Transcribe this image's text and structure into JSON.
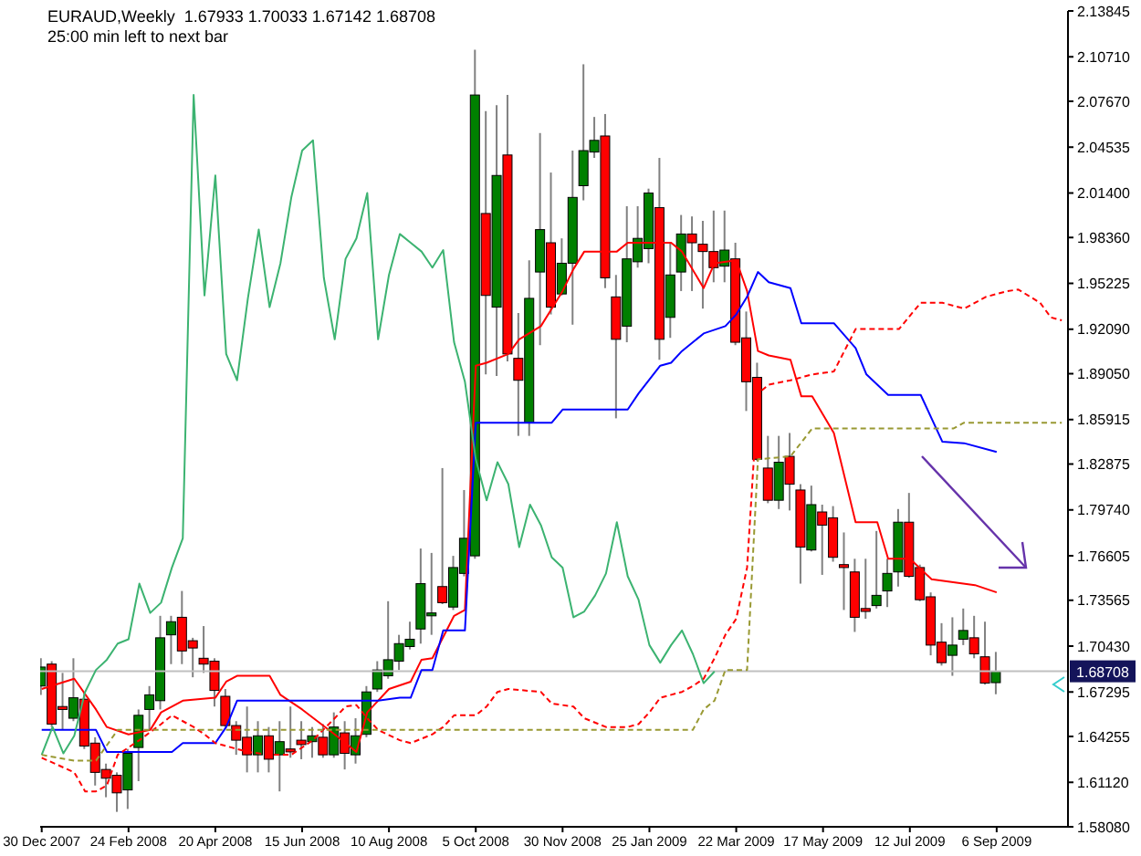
{
  "chart_data": {
    "type": "candlestick",
    "title": "EURAUD,Weekly  1.67933 1.70033 1.67142 1.68708",
    "subtitle": "25:00 min left to next bar",
    "x": [
      "2007-12-30",
      "2008-01-06",
      "2008-01-13",
      "2008-01-20",
      "2008-01-27",
      "2008-02-03",
      "2008-02-10",
      "2008-02-17",
      "2008-02-24",
      "2008-03-02",
      "2008-03-09",
      "2008-03-16",
      "2008-03-23",
      "2008-03-30",
      "2008-04-06",
      "2008-04-13",
      "2008-04-20",
      "2008-04-27",
      "2008-05-04",
      "2008-05-11",
      "2008-05-18",
      "2008-05-25",
      "2008-06-01",
      "2008-06-08",
      "2008-06-15",
      "2008-06-22",
      "2008-06-29",
      "2008-07-06",
      "2008-07-13",
      "2008-07-20",
      "2008-07-27",
      "2008-08-03",
      "2008-08-10",
      "2008-08-17",
      "2008-08-24",
      "2008-08-31",
      "2008-09-07",
      "2008-09-14",
      "2008-09-21",
      "2008-09-28",
      "2008-10-05",
      "2008-10-12",
      "2008-10-19",
      "2008-10-26",
      "2008-11-02",
      "2008-11-09",
      "2008-11-16",
      "2008-11-23",
      "2008-11-30",
      "2008-12-07",
      "2008-12-14",
      "2008-12-21",
      "2008-12-28",
      "2009-01-04",
      "2009-01-11",
      "2009-01-18",
      "2009-01-25",
      "2009-02-01",
      "2009-02-08",
      "2009-02-15",
      "2009-02-22",
      "2009-03-01",
      "2009-03-08",
      "2009-03-15",
      "2009-03-22",
      "2009-03-29",
      "2009-04-05",
      "2009-04-12",
      "2009-04-19",
      "2009-04-26",
      "2009-05-03",
      "2009-05-10",
      "2009-05-17",
      "2009-05-24",
      "2009-05-31",
      "2009-06-07",
      "2009-06-14",
      "2009-06-21",
      "2009-06-28",
      "2009-07-05",
      "2009-07-12",
      "2009-07-19",
      "2009-07-26",
      "2009-08-02",
      "2009-08-09",
      "2009-08-16",
      "2009-08-23",
      "2009-08-30",
      "2009-09-06"
    ],
    "ohlc": [
      [
        1.677,
        1.696,
        1.671,
        1.69
      ],
      [
        1.692,
        1.694,
        1.649,
        1.651
      ],
      [
        1.663,
        1.686,
        1.647,
        1.661
      ],
      [
        1.655,
        1.696,
        1.653,
        1.669
      ],
      [
        1.668,
        1.673,
        1.634,
        1.636
      ],
      [
        1.638,
        1.642,
        1.609,
        1.618
      ],
      [
        1.62,
        1.624,
        1.601,
        1.614
      ],
      [
        1.616,
        1.618,
        1.591,
        1.604
      ],
      [
        1.606,
        1.634,
        1.593,
        1.631
      ],
      [
        1.635,
        1.661,
        1.612,
        1.657
      ],
      [
        1.661,
        1.677,
        1.647,
        1.671
      ],
      [
        1.667,
        1.725,
        1.661,
        1.71
      ],
      [
        1.712,
        1.725,
        1.692,
        1.721
      ],
      [
        1.724,
        1.742,
        1.692,
        1.701
      ],
      [
        1.708,
        1.71,
        1.683,
        1.703
      ],
      [
        1.696,
        1.718,
        1.686,
        1.692
      ],
      [
        1.694,
        1.696,
        1.663,
        1.674
      ],
      [
        1.67,
        1.675,
        1.649,
        1.65
      ],
      [
        1.65,
        1.653,
        1.63,
        1.64
      ],
      [
        1.642,
        1.663,
        1.618,
        1.63
      ],
      [
        1.63,
        1.653,
        1.618,
        1.643
      ],
      [
        1.643,
        1.649,
        1.618,
        1.627
      ],
      [
        1.63,
        1.653,
        1.605,
        1.639
      ],
      [
        1.634,
        1.663,
        1.628,
        1.632
      ],
      [
        1.64,
        1.653,
        1.627,
        1.637
      ],
      [
        1.639,
        1.649,
        1.628,
        1.643
      ],
      [
        1.642,
        1.651,
        1.628,
        1.63
      ],
      [
        1.63,
        1.659,
        1.628,
        1.649
      ],
      [
        1.645,
        1.653,
        1.62,
        1.631
      ],
      [
        1.63,
        1.655,
        1.624,
        1.643
      ],
      [
        1.644,
        1.677,
        1.642,
        1.673
      ],
      [
        1.675,
        1.694,
        1.673,
        1.688
      ],
      [
        1.684,
        1.735,
        1.682,
        1.695
      ],
      [
        1.694,
        1.712,
        1.688,
        1.706
      ],
      [
        1.704,
        1.721,
        1.702,
        1.709
      ],
      [
        1.716,
        1.771,
        1.706,
        1.747
      ],
      [
        1.725,
        1.768,
        1.712,
        1.727
      ],
      [
        1.745,
        1.826,
        1.733,
        1.734
      ],
      [
        1.731,
        1.766,
        1.729,
        1.758
      ],
      [
        1.754,
        1.811,
        1.752,
        1.778
      ],
      [
        1.766,
        2.112,
        1.764,
        2.081
      ],
      [
        2.0,
        2.07,
        1.89,
        1.944
      ],
      [
        1.936,
        2.074,
        1.889,
        2.026
      ],
      [
        2.04,
        2.081,
        1.899,
        1.904
      ],
      [
        1.901,
        1.932,
        1.848,
        1.886
      ],
      [
        1.857,
        1.968,
        1.848,
        1.942
      ],
      [
        1.96,
        2.055,
        1.91,
        1.989
      ],
      [
        1.98,
        2.028,
        1.931,
        1.936
      ],
      [
        1.945,
        1.983,
        1.944,
        1.966
      ],
      [
        1.966,
        2.043,
        1.924,
        2.011
      ],
      [
        2.019,
        2.102,
        2.009,
        2.043
      ],
      [
        2.042,
        2.066,
        2.038,
        2.05
      ],
      [
        2.053,
        2.068,
        1.949,
        1.956
      ],
      [
        1.943,
        1.958,
        1.86,
        1.914
      ],
      [
        1.923,
        2.005,
        1.912,
        1.969
      ],
      [
        1.967,
        2.005,
        1.963,
        1.983
      ],
      [
        1.976,
        2.017,
        1.966,
        2.014
      ],
      [
        2.004,
        2.038,
        1.9,
        1.914
      ],
      [
        1.929,
        1.98,
        1.915,
        1.958
      ],
      [
        1.96,
        1.999,
        1.947,
        1.986
      ],
      [
        1.986,
        1.998,
        1.947,
        1.98
      ],
      [
        1.979,
        1.995,
        1.935,
        1.974
      ],
      [
        1.974,
        2.002,
        1.953,
        1.963
      ],
      [
        1.964,
        2.002,
        1.953,
        1.975
      ],
      [
        1.969,
        1.98,
        1.91,
        1.912
      ],
      [
        1.915,
        1.933,
        1.865,
        1.885
      ],
      [
        1.888,
        1.898,
        1.831,
        1.832
      ],
      [
        1.826,
        1.848,
        1.802,
        1.804
      ],
      [
        1.804,
        1.848,
        1.798,
        1.83
      ],
      [
        1.834,
        1.85,
        1.797,
        1.815
      ],
      [
        1.811,
        1.815,
        1.747,
        1.772
      ],
      [
        1.77,
        1.814,
        1.769,
        1.801
      ],
      [
        1.796,
        1.801,
        1.753,
        1.787
      ],
      [
        1.792,
        1.8,
        1.762,
        1.765
      ],
      [
        1.76,
        1.782,
        1.729,
        1.758
      ],
      [
        1.755,
        1.764,
        1.714,
        1.724
      ],
      [
        1.73,
        1.764,
        1.723,
        1.728
      ],
      [
        1.732,
        1.783,
        1.73,
        1.739
      ],
      [
        1.742,
        1.764,
        1.731,
        1.754
      ],
      [
        1.755,
        1.798,
        1.745,
        1.789
      ],
      [
        1.789,
        1.809,
        1.751,
        1.752
      ],
      [
        1.758,
        1.76,
        1.735,
        1.736
      ],
      [
        1.738,
        1.741,
        1.698,
        1.705
      ],
      [
        1.707,
        1.72,
        1.691,
        1.693
      ],
      [
        1.698,
        1.724,
        1.684,
        1.705
      ],
      [
        1.709,
        1.73,
        1.705,
        1.715
      ],
      [
        1.71,
        1.725,
        1.696,
        1.699
      ],
      [
        1.697,
        1.721,
        1.678,
        1.679
      ],
      [
        1.67933,
        1.70033,
        1.67142,
        1.68708
      ]
    ],
    "series": [
      {
        "type": "line",
        "color": "#ff0000",
        "x": [
          "2007-12-30",
          "2008-01-20",
          "2008-02-03",
          "2008-02-10",
          "2008-02-24",
          "2008-03-09",
          "2008-03-16",
          "2008-03-30",
          "2008-04-20",
          "2008-04-27",
          "2008-05-04",
          "2008-05-25",
          "2008-06-01",
          "2008-06-15",
          "2008-07-06",
          "2008-07-20",
          "2008-07-27",
          "2008-08-10",
          "2008-08-24",
          "2008-08-31",
          "2008-09-07",
          "2008-09-21",
          "2008-09-28",
          "2008-10-05",
          "2008-10-12",
          "2008-10-26",
          "2008-11-02",
          "2008-11-16",
          "2008-11-23",
          "2008-11-30",
          "2008-12-07",
          "2008-12-14",
          "2009-01-04",
          "2009-01-11",
          "2009-02-08",
          "2009-02-15",
          "2009-03-01",
          "2009-03-08",
          "2009-03-22",
          "2009-03-29",
          "2009-04-05",
          "2009-04-12",
          "2009-04-26",
          "2009-05-03",
          "2009-05-10",
          "2009-05-24",
          "2009-06-07",
          "2009-06-21",
          "2009-06-28",
          "2009-07-12",
          "2009-07-26",
          "2009-08-23",
          "2009-09-06"
        ],
        "values": [
          1.675,
          1.682,
          1.661,
          1.649,
          1.644,
          1.647,
          1.659,
          1.667,
          1.669,
          1.68,
          1.684,
          1.684,
          1.671,
          1.661,
          1.644,
          1.632,
          1.659,
          1.675,
          1.68,
          1.695,
          1.696,
          1.725,
          1.729,
          1.896,
          1.898,
          1.904,
          1.914,
          1.923,
          1.935,
          1.947,
          1.962,
          1.974,
          1.974,
          1.98,
          1.98,
          1.974,
          1.949,
          1.966,
          1.968,
          1.947,
          1.906,
          1.903,
          1.9,
          1.875,
          1.875,
          1.85,
          1.789,
          1.789,
          1.764,
          1.764,
          1.75,
          1.746,
          1.741
        ]
      },
      {
        "type": "line",
        "color": "#0000ff",
        "x": [
          "2007-12-30",
          "2008-02-03",
          "2008-02-10",
          "2008-03-23",
          "2008-03-30",
          "2008-04-20",
          "2008-04-27",
          "2008-05-04",
          "2008-08-03",
          "2008-08-17",
          "2008-08-24",
          "2008-08-31",
          "2008-09-07",
          "2008-09-14",
          "2008-09-28",
          "2008-10-05",
          "2008-11-23",
          "2008-11-30",
          "2009-01-11",
          "2009-01-18",
          "2009-02-01",
          "2009-02-08",
          "2009-02-15",
          "2009-03-01",
          "2009-03-15",
          "2009-03-22",
          "2009-03-29",
          "2009-04-05",
          "2009-04-12",
          "2009-04-26",
          "2009-05-03",
          "2009-05-24",
          "2009-06-07",
          "2009-06-14",
          "2009-06-28",
          "2009-07-19",
          "2009-08-02",
          "2009-08-16",
          "2009-09-06"
        ],
        "values": [
          1.647,
          1.647,
          1.632,
          1.632,
          1.638,
          1.638,
          1.649,
          1.667,
          1.667,
          1.669,
          1.669,
          1.688,
          1.688,
          1.715,
          1.715,
          1.857,
          1.857,
          1.866,
          1.866,
          1.877,
          1.896,
          1.898,
          1.906,
          1.918,
          1.923,
          1.931,
          1.943,
          1.96,
          1.953,
          1.949,
          1.925,
          1.925,
          1.908,
          1.89,
          1.876,
          1.876,
          1.844,
          1.843,
          1.837
        ]
      },
      {
        "type": "line",
        "color": "#3cb371",
        "x": [
          "2007-12-30",
          "2008-01-06",
          "2008-01-13",
          "2008-01-20",
          "2008-01-27",
          "2008-02-03",
          "2008-02-10",
          "2008-02-17",
          "2008-02-24",
          "2008-03-02",
          "2008-03-09",
          "2008-03-16",
          "2008-03-23",
          "2008-03-30",
          "2008-04-06",
          "2008-04-13",
          "2008-04-20",
          "2008-04-27",
          "2008-05-04",
          "2008-05-11",
          "2008-05-18",
          "2008-05-25",
          "2008-06-01",
          "2008-06-08",
          "2008-06-15",
          "2008-06-22",
          "2008-06-29",
          "2008-07-06",
          "2008-07-13",
          "2008-07-20",
          "2008-07-27",
          "2008-08-03",
          "2008-08-10",
          "2008-08-17",
          "2008-08-24",
          "2008-08-31",
          "2008-09-07",
          "2008-09-14",
          "2008-09-21",
          "2008-09-28",
          "2008-10-05",
          "2008-10-12",
          "2008-10-19",
          "2008-10-26",
          "2008-11-02",
          "2008-11-09",
          "2008-11-16",
          "2008-11-23",
          "2008-11-30",
          "2008-12-07",
          "2008-12-14",
          "2008-12-21",
          "2008-12-28",
          "2009-01-04",
          "2009-01-11",
          "2009-01-18",
          "2009-01-25",
          "2009-02-01",
          "2009-02-08",
          "2009-02-15",
          "2009-02-22",
          "2009-03-01",
          "2009-03-08"
        ],
        "values": [
          1.63,
          1.649,
          1.631,
          1.643,
          1.673,
          1.688,
          1.695,
          1.706,
          1.709,
          1.747,
          1.727,
          1.734,
          1.758,
          1.778,
          2.081,
          1.944,
          2.026,
          1.904,
          1.886,
          1.942,
          1.989,
          1.936,
          1.966,
          2.011,
          2.043,
          2.05,
          1.956,
          1.914,
          1.969,
          1.983,
          2.014,
          1.914,
          1.958,
          1.986,
          1.98,
          1.974,
          1.963,
          1.975,
          1.912,
          1.885,
          1.832,
          1.804,
          1.83,
          1.815,
          1.772,
          1.801,
          1.787,
          1.765,
          1.758,
          1.724,
          1.728,
          1.739,
          1.754,
          1.789,
          1.752,
          1.736,
          1.705,
          1.693,
          1.705,
          1.715,
          1.699,
          1.679,
          1.687
        ]
      },
      {
        "type": "line",
        "color": "#ff0000",
        "line_style": "dashed",
        "x": [
          "2007-12-30",
          "2008-01-20",
          "2008-01-27",
          "2008-02-03",
          "2008-02-10",
          "2008-02-17",
          "2008-03-02",
          "2008-03-16",
          "2008-03-23",
          "2008-03-30",
          "2008-04-06",
          "2008-04-13",
          "2008-04-20",
          "2008-05-11",
          "2008-05-25",
          "2008-06-08",
          "2008-06-22",
          "2008-07-06",
          "2008-07-13",
          "2008-07-20",
          "2008-07-27",
          "2008-08-03",
          "2008-08-17",
          "2008-08-24",
          "2008-09-07",
          "2008-09-14",
          "2008-09-21",
          "2008-10-05",
          "2008-10-12",
          "2008-10-19",
          "2008-10-26",
          "2008-11-16",
          "2008-11-23",
          "2008-12-07",
          "2008-12-14",
          "2008-12-28",
          "2009-01-11",
          "2009-01-18",
          "2009-01-25",
          "2009-02-01",
          "2009-02-08",
          "2009-02-15",
          "2009-02-22",
          "2009-03-01",
          "2009-03-08",
          "2009-03-15",
          "2009-03-22",
          "2009-03-29",
          "2009-04-05",
          "2009-04-12",
          "2009-04-26",
          "2009-05-10",
          "2009-05-24",
          "2009-06-07",
          "2009-06-14",
          "2009-07-05",
          "2009-07-19",
          "2009-08-02",
          "2009-08-16",
          "2009-08-30",
          "2009-09-13",
          "2009-09-20",
          "2009-10-04",
          "2009-10-11",
          "2009-10-18"
        ],
        "values": [
          1.628,
          1.618,
          1.605,
          1.605,
          1.609,
          1.63,
          1.64,
          1.651,
          1.657,
          1.653,
          1.649,
          1.644,
          1.638,
          1.632,
          1.63,
          1.63,
          1.64,
          1.655,
          1.663,
          1.664,
          1.655,
          1.647,
          1.64,
          1.638,
          1.644,
          1.649,
          1.657,
          1.657,
          1.663,
          1.673,
          1.675,
          1.673,
          1.665,
          1.663,
          1.655,
          1.649,
          1.649,
          1.651,
          1.659,
          1.669,
          1.671,
          1.673,
          1.677,
          1.682,
          1.696,
          1.712,
          1.723,
          1.758,
          1.877,
          1.883,
          1.886,
          1.89,
          1.892,
          1.921,
          1.921,
          1.921,
          1.939,
          1.939,
          1.935,
          1.943,
          1.947,
          1.948,
          1.939,
          1.929,
          1.927
        ]
      },
      {
        "type": "line",
        "color": "#999933",
        "line_style": "dashed",
        "x": [
          "2007-12-30",
          "2008-01-20",
          "2008-02-03",
          "2008-02-17",
          "2009-02-22",
          "2009-03-01",
          "2009-03-08",
          "2009-03-15",
          "2009-03-29",
          "2009-04-05",
          "2009-04-26",
          "2009-05-10",
          "2009-08-09",
          "2009-08-16",
          "2009-10-18"
        ],
        "values": [
          1.63,
          1.626,
          1.626,
          1.647,
          1.647,
          1.661,
          1.667,
          1.688,
          1.688,
          1.832,
          1.834,
          1.853,
          1.853,
          1.857,
          1.857
        ]
      }
    ],
    "xlim": [
      "2007-12-29",
      "2009-10-22"
    ],
    "xticks": [
      {
        "value": "2007-12-30",
        "label": "30 Dec 2007"
      },
      {
        "value": "2008-02-24",
        "label": "24 Feb 2008"
      },
      {
        "value": "2008-04-20",
        "label": "20 Apr 2008"
      },
      {
        "value": "2008-06-15",
        "label": "15 Jun 2008"
      },
      {
        "value": "2008-08-10",
        "label": "10 Aug 2008"
      },
      {
        "value": "2008-10-05",
        "label": "5 Oct 2008"
      },
      {
        "value": "2008-11-30",
        "label": "30 Nov 2008"
      },
      {
        "value": "2009-01-25",
        "label": "25 Jan 2009"
      },
      {
        "value": "2009-03-22",
        "label": "22 Mar 2009"
      },
      {
        "value": "2009-05-17",
        "label": "17 May 2009"
      },
      {
        "value": "2009-07-12",
        "label": "12 Jul 2009"
      },
      {
        "value": "2009-09-06",
        "label": "6 Sep 2009"
      }
    ],
    "ylim": [
      1.5808,
      2.13845
    ],
    "yticks": [
      {
        "value": 1.5808,
        "label": "1.58080"
      },
      {
        "value": 1.6112,
        "label": "1.61120"
      },
      1.64255,
      1.67295,
      {
        "value": 1.7043,
        "label": "1.70430"
      },
      1.73565,
      1.76605,
      {
        "value": 1.7974,
        "label": "1.79740"
      },
      1.82875,
      1.85915,
      {
        "value": 1.8905,
        "label": "1.89050"
      },
      {
        "value": 1.9209,
        "label": "1.92090"
      },
      1.95225,
      {
        "value": 1.9836,
        "label": "1.98360"
      },
      {
        "value": 2.014,
        "label": "2.01400"
      },
      2.04535,
      {
        "value": 2.0767,
        "label": "2.07670"
      },
      {
        "value": 2.1071,
        "label": "2.10710"
      },
      2.13845
    ],
    "ref_lines": [
      {
        "axis": "y",
        "value": 1.68708,
        "label": "1.68708",
        "color": "#c0c0c0"
      }
    ]
  }
}
